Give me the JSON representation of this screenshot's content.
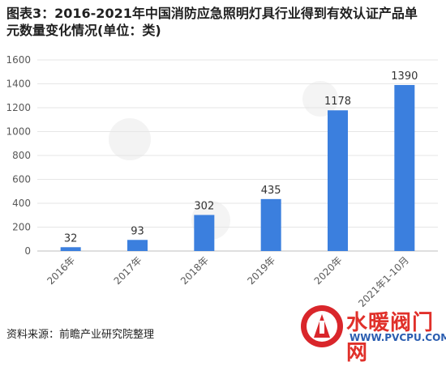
{
  "title": "图表3：2016-2021年中国消防应急照明灯具行业得到有效认证产品单元数量变化情况(单位：类)",
  "source": "资料来源：前瞻产业研究院整理",
  "logo": {
    "text": "水暖阀门网",
    "url": "WWW.PVCPU.COM"
  },
  "chart_data": {
    "type": "bar",
    "categories": [
      "2016年",
      "2017年",
      "2018年",
      "2019年",
      "2020年",
      "2021年1-10月"
    ],
    "values": [
      32,
      93,
      302,
      435,
      1178,
      1390
    ],
    "ylim": [
      0,
      1600
    ],
    "yticks": [
      0,
      200,
      400,
      600,
      800,
      1000,
      1200,
      1400,
      1600
    ],
    "bar_color": "#3b7fde",
    "grid": true,
    "xlabel": "",
    "ylabel": ""
  }
}
